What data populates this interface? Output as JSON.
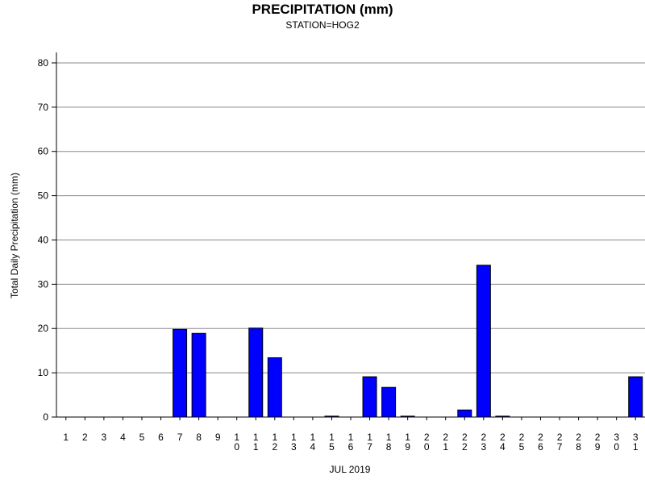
{
  "chart_data": {
    "type": "bar",
    "title": "PRECIPITATION (mm)",
    "subtitle": "STATION=HOG2",
    "xlabel": "JUL 2019",
    "ylabel": "Total Daily Precipitation (mm)",
    "ylim": [
      0,
      82
    ],
    "yticks": [
      0,
      10,
      20,
      30,
      40,
      50,
      60,
      70,
      80
    ],
    "grid": true,
    "bar_color": "#0000ff",
    "categories": [
      "1",
      "2",
      "3",
      "4",
      "5",
      "6",
      "7",
      "8",
      "9",
      "10",
      "11",
      "12",
      "13",
      "14",
      "15",
      "16",
      "17",
      "18",
      "19",
      "20",
      "21",
      "22",
      "23",
      "24",
      "25",
      "26",
      "27",
      "28",
      "29",
      "30",
      "31"
    ],
    "values": [
      0,
      0,
      0,
      0,
      0,
      0,
      19.8,
      18.9,
      0,
      0,
      20.1,
      13.4,
      0,
      0,
      0.2,
      0,
      9.1,
      6.7,
      0.2,
      0,
      0,
      1.6,
      34.3,
      0.2,
      0,
      0,
      0,
      0,
      0,
      0,
      9.1
    ]
  }
}
